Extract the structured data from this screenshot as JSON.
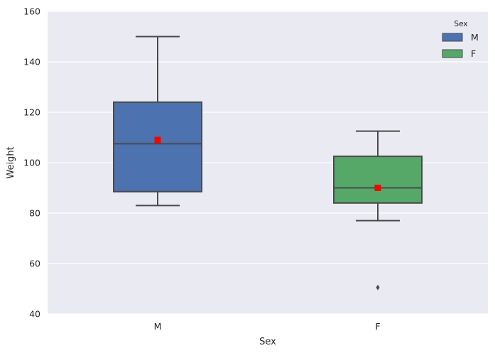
{
  "chart_data": {
    "type": "box",
    "xlabel": "Sex",
    "ylabel": "Weight",
    "ylim": [
      40,
      160
    ],
    "yticks": [
      40,
      60,
      80,
      100,
      120,
      140,
      160
    ],
    "categories": [
      "M",
      "F"
    ],
    "grid": "horizontal",
    "background": "#EAEAF2",
    "legend": {
      "title": "Sex",
      "placement": "top-right",
      "entries": [
        {
          "label": "M",
          "color": "#4C72B0"
        },
        {
          "label": "F",
          "color": "#55A868"
        }
      ]
    },
    "series": [
      {
        "category": "M",
        "color": "#4C72B0",
        "whisker_low": 83,
        "q1": 88.5,
        "median": 107.5,
        "q3": 124,
        "whisker_high": 150,
        "mean": 109,
        "outliers": []
      },
      {
        "category": "F",
        "color": "#55A868",
        "whisker_low": 77,
        "q1": 84,
        "median": 90,
        "q3": 102.5,
        "whisker_high": 112.5,
        "mean": 90,
        "outliers": [
          50.5
        ]
      }
    ],
    "mean_marker_color": "#FF0000"
  }
}
